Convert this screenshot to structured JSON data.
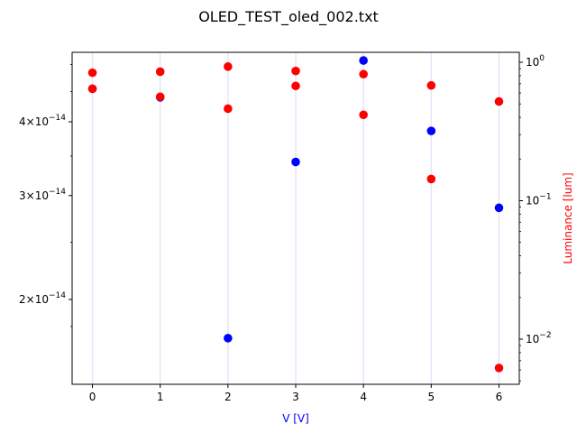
{
  "chart_data": {
    "type": "scatter",
    "title": "OLED_TEST_oled_002.txt",
    "xlabel": "V [V]",
    "xlabel_color": "#0000ff",
    "ylabel_right": "Luminance [lum]",
    "ylabel_right_color": "#ff0000",
    "x_ticks": [
      "0",
      "1",
      "2",
      "3",
      "4",
      "5",
      "6"
    ],
    "xlim": [
      -0.3,
      6.3
    ],
    "y_left": {
      "scale": "log",
      "ticks": [
        {
          "value": 2e-14,
          "mantissa": "2",
          "base": "10",
          "exponent": "−14"
        },
        {
          "value": 3e-14,
          "mantissa": "3",
          "base": "10",
          "exponent": "−14"
        },
        {
          "value": 4e-14,
          "mantissa": "4",
          "base": "10",
          "exponent": "−14"
        }
      ]
    },
    "y_right": {
      "scale": "log",
      "ticks": [
        {
          "value": 0.01,
          "base": "10",
          "exponent": "−2"
        },
        {
          "value": 0.1,
          "base": "10",
          "exponent": "−1"
        },
        {
          "value": 1,
          "base": "10",
          "exponent": "0"
        }
      ]
    },
    "grid": "vertical lines at x ticks",
    "colors": {
      "current": "#0000ff",
      "luminance": "#ff0000",
      "grid": "#e6e6fa"
    },
    "series": [
      {
        "axis": "left",
        "color": "#0000ff",
        "points": [
          [
            0,
            4.55e-14
          ],
          [
            1,
            4.4e-14
          ],
          [
            2,
            1.72e-14
          ],
          [
            3,
            3.42e-14
          ],
          [
            4,
            5.08e-14
          ],
          [
            5,
            3.86e-14
          ],
          [
            6,
            2.86e-14
          ]
        ]
      },
      {
        "axis": "left",
        "color": "#ff0000",
        "points": [
          [
            0,
            4.55e-14
          ],
          [
            1,
            4.41e-14
          ],
          [
            2,
            4.21e-14
          ],
          [
            3,
            4.6e-14
          ],
          [
            4,
            4.11e-14
          ],
          [
            5,
            3.2e-14
          ],
          [
            6,
            4.33e-14
          ]
        ]
      },
      {
        "axis": "right",
        "color": "#ff0000",
        "points": [
          [
            0,
            0.84
          ],
          [
            1,
            0.855
          ],
          [
            2,
            0.93
          ],
          [
            3,
            0.865
          ],
          [
            4,
            0.82
          ],
          [
            5,
            0.68
          ],
          [
            6,
            0.0062
          ]
        ]
      }
    ]
  }
}
